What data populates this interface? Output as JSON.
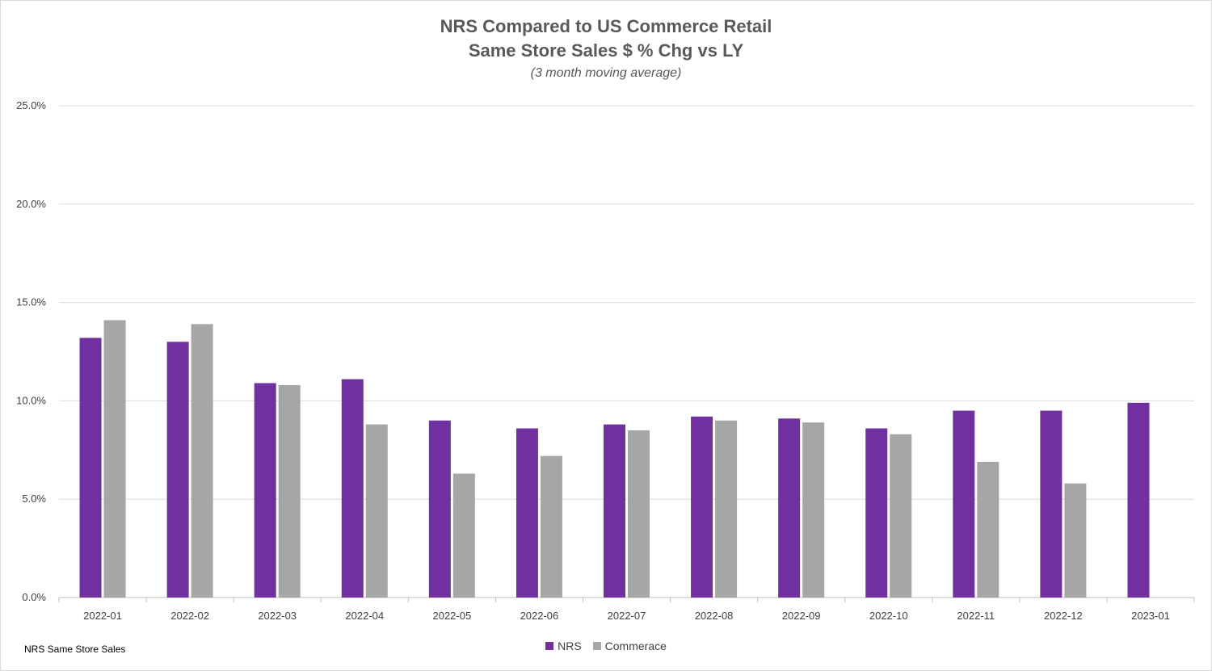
{
  "chart_data": {
    "type": "bar",
    "title": "NRS Compared to US Commerce Retail",
    "subtitle": "Same Store Sales $ % Chg vs LY",
    "note": "(3 month moving average)",
    "source": "NRS Same Store Sales",
    "categories": [
      "2022-01",
      "2022-02",
      "2022-03",
      "2022-04",
      "2022-05",
      "2022-06",
      "2022-07",
      "2022-08",
      "2022-09",
      "2022-10",
      "2022-11",
      "2022-12",
      "2023-01"
    ],
    "series": [
      {
        "name": "NRS",
        "color": "#7030a0",
        "values": [
          13.2,
          13.0,
          10.9,
          11.1,
          9.0,
          8.6,
          8.8,
          9.2,
          9.1,
          8.6,
          9.5,
          9.5,
          9.9
        ]
      },
      {
        "name": "Commerace",
        "color": "#a6a6a6",
        "values": [
          14.1,
          13.9,
          10.8,
          8.8,
          6.3,
          7.2,
          8.5,
          9.0,
          8.9,
          8.3,
          6.9,
          5.8,
          null
        ]
      }
    ],
    "y_ticks": [
      "0.0%",
      "5.0%",
      "10.0%",
      "15.0%",
      "20.0%",
      "25.0%"
    ],
    "ylim": [
      0,
      25
    ],
    "grid": true,
    "legend_position": "bottom"
  }
}
